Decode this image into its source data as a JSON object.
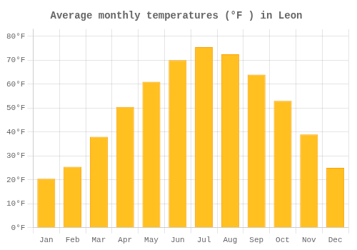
{
  "chart_data": {
    "type": "bar",
    "title": "Average monthly temperatures (°F ) in Leon",
    "categories": [
      "Jan",
      "Feb",
      "Mar",
      "Apr",
      "May",
      "Jun",
      "Jul",
      "Aug",
      "Sep",
      "Oct",
      "Nov",
      "Dec"
    ],
    "values": [
      20.5,
      25.5,
      38.0,
      50.5,
      61.0,
      70.0,
      75.5,
      72.5,
      64.0,
      53.0,
      39.0,
      25.0
    ],
    "color": "#FFC020",
    "ylim": [
      0,
      83
    ],
    "yticks": [
      {
        "value": 0,
        "label": "0°F"
      },
      {
        "value": 10,
        "label": "10°F"
      },
      {
        "value": 20,
        "label": "20°F"
      },
      {
        "value": 30,
        "label": "30°F"
      },
      {
        "value": 40,
        "label": "40°F"
      },
      {
        "value": 50,
        "label": "50°F"
      },
      {
        "value": 60,
        "label": "60°F"
      },
      {
        "value": 70,
        "label": "70°F"
      },
      {
        "value": 80,
        "label": "80°F"
      }
    ],
    "grid": true
  }
}
